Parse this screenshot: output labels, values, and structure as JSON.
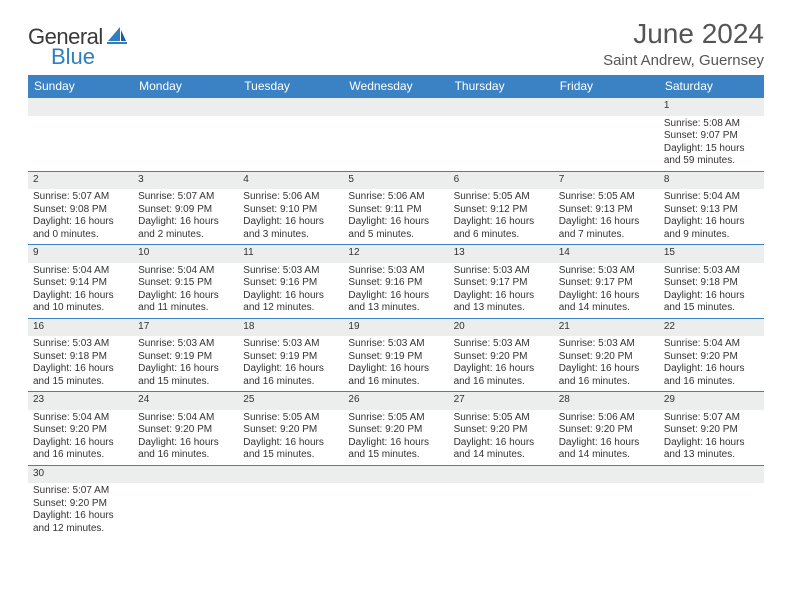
{
  "brand": {
    "text1": "General",
    "text2": "Blue"
  },
  "title": "June 2024",
  "subtitle": "Saint Andrew, Guernsey",
  "colors": {
    "header_bg": "#3b82c4",
    "header_text": "#ffffff",
    "numrow_bg": "#eceded",
    "border": "#3b82c4",
    "title_color": "#555555",
    "body_text": "#444444"
  },
  "day_names": [
    "Sunday",
    "Monday",
    "Tuesday",
    "Wednesday",
    "Thursday",
    "Friday",
    "Saturday"
  ],
  "weeks": [
    [
      null,
      null,
      null,
      null,
      null,
      null,
      {
        "n": "1",
        "sr": "5:08 AM",
        "ss": "9:07 PM",
        "dl": "15 hours and 59 minutes."
      }
    ],
    [
      {
        "n": "2",
        "sr": "5:07 AM",
        "ss": "9:08 PM",
        "dl": "16 hours and 0 minutes."
      },
      {
        "n": "3",
        "sr": "5:07 AM",
        "ss": "9:09 PM",
        "dl": "16 hours and 2 minutes."
      },
      {
        "n": "4",
        "sr": "5:06 AM",
        "ss": "9:10 PM",
        "dl": "16 hours and 3 minutes."
      },
      {
        "n": "5",
        "sr": "5:06 AM",
        "ss": "9:11 PM",
        "dl": "16 hours and 5 minutes."
      },
      {
        "n": "6",
        "sr": "5:05 AM",
        "ss": "9:12 PM",
        "dl": "16 hours and 6 minutes."
      },
      {
        "n": "7",
        "sr": "5:05 AM",
        "ss": "9:13 PM",
        "dl": "16 hours and 7 minutes."
      },
      {
        "n": "8",
        "sr": "5:04 AM",
        "ss": "9:13 PM",
        "dl": "16 hours and 9 minutes."
      }
    ],
    [
      {
        "n": "9",
        "sr": "5:04 AM",
        "ss": "9:14 PM",
        "dl": "16 hours and 10 minutes."
      },
      {
        "n": "10",
        "sr": "5:04 AM",
        "ss": "9:15 PM",
        "dl": "16 hours and 11 minutes."
      },
      {
        "n": "11",
        "sr": "5:03 AM",
        "ss": "9:16 PM",
        "dl": "16 hours and 12 minutes."
      },
      {
        "n": "12",
        "sr": "5:03 AM",
        "ss": "9:16 PM",
        "dl": "16 hours and 13 minutes."
      },
      {
        "n": "13",
        "sr": "5:03 AM",
        "ss": "9:17 PM",
        "dl": "16 hours and 13 minutes."
      },
      {
        "n": "14",
        "sr": "5:03 AM",
        "ss": "9:17 PM",
        "dl": "16 hours and 14 minutes."
      },
      {
        "n": "15",
        "sr": "5:03 AM",
        "ss": "9:18 PM",
        "dl": "16 hours and 15 minutes."
      }
    ],
    [
      {
        "n": "16",
        "sr": "5:03 AM",
        "ss": "9:18 PM",
        "dl": "16 hours and 15 minutes."
      },
      {
        "n": "17",
        "sr": "5:03 AM",
        "ss": "9:19 PM",
        "dl": "16 hours and 15 minutes."
      },
      {
        "n": "18",
        "sr": "5:03 AM",
        "ss": "9:19 PM",
        "dl": "16 hours and 16 minutes."
      },
      {
        "n": "19",
        "sr": "5:03 AM",
        "ss": "9:19 PM",
        "dl": "16 hours and 16 minutes."
      },
      {
        "n": "20",
        "sr": "5:03 AM",
        "ss": "9:20 PM",
        "dl": "16 hours and 16 minutes."
      },
      {
        "n": "21",
        "sr": "5:03 AM",
        "ss": "9:20 PM",
        "dl": "16 hours and 16 minutes."
      },
      {
        "n": "22",
        "sr": "5:04 AM",
        "ss": "9:20 PM",
        "dl": "16 hours and 16 minutes."
      }
    ],
    [
      {
        "n": "23",
        "sr": "5:04 AM",
        "ss": "9:20 PM",
        "dl": "16 hours and 16 minutes."
      },
      {
        "n": "24",
        "sr": "5:04 AM",
        "ss": "9:20 PM",
        "dl": "16 hours and 16 minutes."
      },
      {
        "n": "25",
        "sr": "5:05 AM",
        "ss": "9:20 PM",
        "dl": "16 hours and 15 minutes."
      },
      {
        "n": "26",
        "sr": "5:05 AM",
        "ss": "9:20 PM",
        "dl": "16 hours and 15 minutes."
      },
      {
        "n": "27",
        "sr": "5:05 AM",
        "ss": "9:20 PM",
        "dl": "16 hours and 14 minutes."
      },
      {
        "n": "28",
        "sr": "5:06 AM",
        "ss": "9:20 PM",
        "dl": "16 hours and 14 minutes."
      },
      {
        "n": "29",
        "sr": "5:07 AM",
        "ss": "9:20 PM",
        "dl": "16 hours and 13 minutes."
      }
    ],
    [
      {
        "n": "30",
        "sr": "5:07 AM",
        "ss": "9:20 PM",
        "dl": "16 hours and 12 minutes."
      },
      null,
      null,
      null,
      null,
      null,
      null
    ]
  ],
  "labels": {
    "sunrise": "Sunrise:",
    "sunset": "Sunset:",
    "daylight": "Daylight:"
  }
}
